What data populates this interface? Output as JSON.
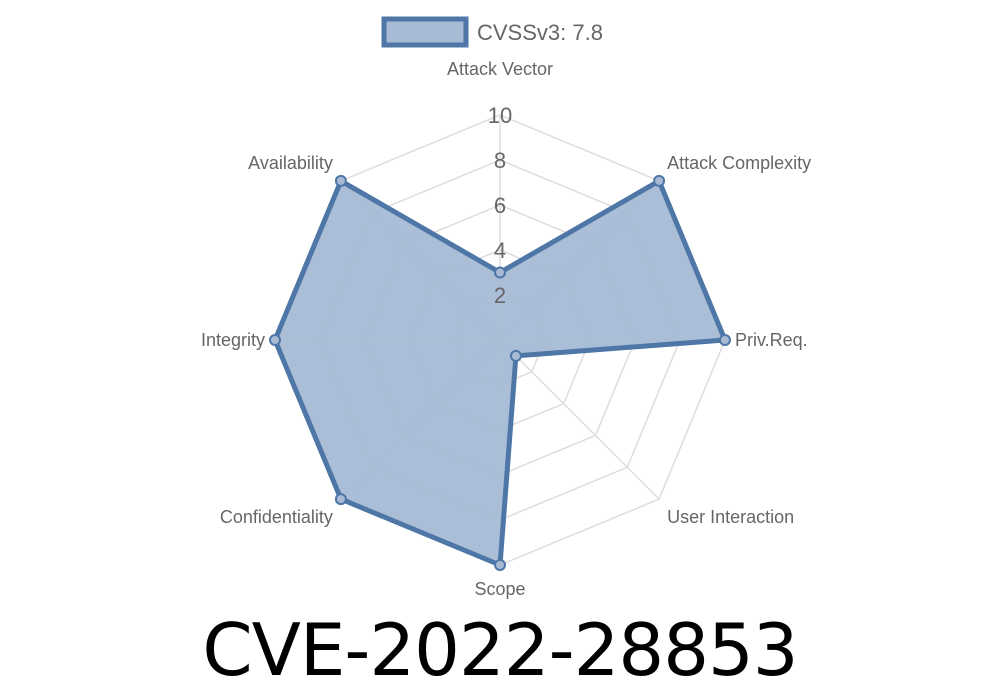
{
  "chart_data": {
    "type": "radar",
    "axes": [
      "Attack Vector",
      "Attack Complexity",
      "Priv.Req.",
      "User Interaction",
      "Scope",
      "Confidentiality",
      "Integrity",
      "Availability"
    ],
    "series": [
      {
        "name": "CVSSv3: 7.8",
        "values": [
          3.0,
          10,
          10,
          1.0,
          10,
          10,
          10,
          10
        ]
      }
    ],
    "rlim": [
      0,
      10
    ],
    "ticks": [
      "2",
      "4",
      "6",
      "8",
      "10"
    ],
    "tick_values": [
      2,
      4,
      6,
      8,
      10
    ],
    "grid": true,
    "legend": "top",
    "colors": {
      "line": "#4e76a6",
      "fill": "#a7bbd5",
      "grid": "#dddddd"
    }
  },
  "title": "CVE-2022-28853"
}
